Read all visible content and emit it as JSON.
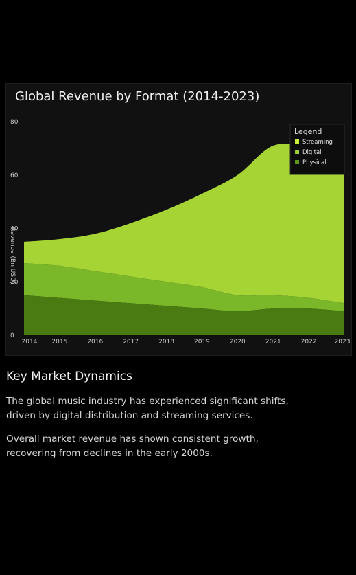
{
  "chart_data": {
    "type": "area",
    "stacked": true,
    "title": "Global Revenue by Format (2014-2023)",
    "ylabel": "Revenue (Bn USD)",
    "xlabel": "",
    "x": [
      "2014",
      "2015",
      "2016",
      "2017",
      "2018",
      "2019",
      "2020",
      "2021",
      "2022",
      "2023"
    ],
    "ylim": [
      0,
      80
    ],
    "yticks": [
      0,
      20,
      40,
      60,
      80
    ],
    "grid": false,
    "legend": {
      "title": "Legend",
      "position": "top-right"
    },
    "series": [
      {
        "name": "Physical",
        "color": "#4a7a12",
        "values": [
          15,
          14,
          13,
          12,
          11,
          10,
          9,
          10,
          10,
          9
        ]
      },
      {
        "name": "Digital",
        "color": "#7ab82a",
        "values": [
          12,
          12,
          11,
          10,
          9,
          8,
          6,
          5,
          4,
          3
        ]
      },
      {
        "name": "Streaming",
        "color": "#a6d435",
        "values": [
          8,
          10,
          14,
          20,
          27,
          35,
          45,
          56,
          56,
          52
        ]
      }
    ],
    "legend_order": [
      "Streaming",
      "Digital",
      "Physical"
    ],
    "legend_colors": {
      "Streaming": "#c8ec3a",
      "Digital": "#9ad02e",
      "Physical": "#5e951a"
    }
  },
  "article": {
    "heading": "Key Market Dynamics",
    "paragraphs": [
      "The global music industry has experienced significant shifts, driven by digital distribution and streaming services.",
      "Overall market revenue has shown consistent growth, recovering from declines in the early 2000s."
    ]
  },
  "colors": {
    "background": "#000000",
    "card": "#111111",
    "axis_text": "#c8c8c8"
  }
}
